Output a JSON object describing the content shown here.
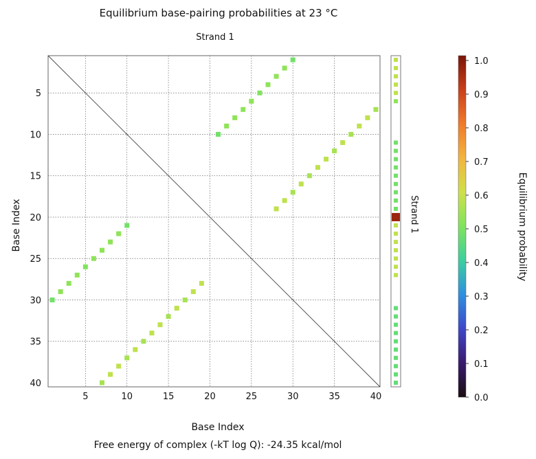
{
  "chart_data": {
    "type": "heatmap",
    "title": "Equilibrium base-pairing probabilities at 23 °C",
    "subtitle": "Strand 1",
    "side_label": "Strand 1",
    "xlabel": "Base Index",
    "ylabel": "Base Index",
    "footer": "Free energy of complex (-kT log Q): -24.35 kcal/mol",
    "n_bases": 40,
    "xlim": [
      1,
      40
    ],
    "ylim": [
      1,
      40
    ],
    "y_inverted": true,
    "grid": true,
    "x_ticks": [
      5,
      10,
      15,
      20,
      25,
      30,
      35,
      40
    ],
    "y_ticks": [
      5,
      10,
      15,
      20,
      25,
      30,
      35,
      40
    ],
    "colorbar": {
      "label": "Equilibrium probability",
      "range": [
        0,
        1.0
      ],
      "ticks": [
        0.0,
        0.1,
        0.2,
        0.3,
        0.4,
        0.5,
        0.6,
        0.7,
        0.8,
        0.9,
        1.0
      ],
      "tick_labels": [
        "0.0",
        "0.1",
        "0.2",
        "0.3",
        "0.4",
        "0.5",
        "0.6",
        "0.7",
        "0.8",
        "0.9",
        "1.0"
      ]
    },
    "pairs": [
      {
        "i": 1,
        "j": 30,
        "p": 0.48
      },
      {
        "i": 2,
        "j": 29,
        "p": 0.52
      },
      {
        "i": 3,
        "j": 28,
        "p": 0.52
      },
      {
        "i": 4,
        "j": 27,
        "p": 0.52
      },
      {
        "i": 5,
        "j": 26,
        "p": 0.5
      },
      {
        "i": 6,
        "j": 25,
        "p": 0.52
      },
      {
        "i": 7,
        "j": 24,
        "p": 0.52
      },
      {
        "i": 8,
        "j": 23,
        "p": 0.52
      },
      {
        "i": 9,
        "j": 22,
        "p": 0.52
      },
      {
        "i": 10,
        "j": 21,
        "p": 0.48
      },
      {
        "i": 7,
        "j": 40,
        "p": 0.55
      },
      {
        "i": 8,
        "j": 39,
        "p": 0.58
      },
      {
        "i": 9,
        "j": 38,
        "p": 0.58
      },
      {
        "i": 10,
        "j": 37,
        "p": 0.55
      },
      {
        "i": 11,
        "j": 36,
        "p": 0.58
      },
      {
        "i": 12,
        "j": 35,
        "p": 0.55
      },
      {
        "i": 13,
        "j": 34,
        "p": 0.58
      },
      {
        "i": 14,
        "j": 33,
        "p": 0.58
      },
      {
        "i": 15,
        "j": 32,
        "p": 0.55
      },
      {
        "i": 16,
        "j": 31,
        "p": 0.58
      },
      {
        "i": 17,
        "j": 30,
        "p": 0.55
      },
      {
        "i": 18,
        "j": 29,
        "p": 0.58
      },
      {
        "i": 19,
        "j": 28,
        "p": 0.58
      }
    ],
    "unpaired": [
      0.58,
      0.58,
      0.58,
      0.58,
      0.58,
      0.52,
      0.0,
      0.0,
      0.0,
      0.0,
      0.48,
      0.48,
      0.48,
      0.48,
      0.48,
      0.48,
      0.48,
      0.48,
      0.48,
      0.96,
      0.58,
      0.58,
      0.58,
      0.58,
      0.58,
      0.58,
      0.58,
      0.0,
      0.0,
      0.0,
      0.46,
      0.46,
      0.46,
      0.46,
      0.46,
      0.46,
      0.46,
      0.46,
      0.46,
      0.46
    ]
  }
}
